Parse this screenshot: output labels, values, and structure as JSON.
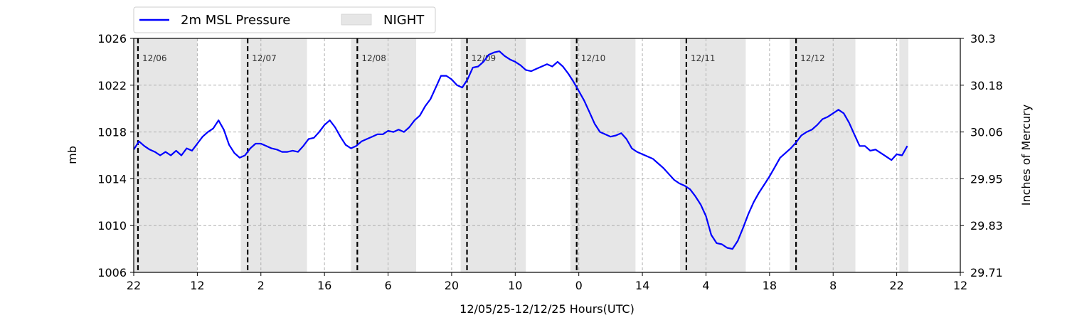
{
  "chart_data": {
    "type": "line",
    "xlabel": "12/05/25-12/12/25  Hours(UTC)",
    "ylabel": "mb",
    "y2label": "Inches of Mercury",
    "ylim": [
      1006,
      1026
    ],
    "yticks": [
      1006,
      1010,
      1014,
      1018,
      1022,
      1026
    ],
    "y2ticks": [
      "29.71",
      "29.83",
      "29.95",
      "30.06",
      "30.18",
      "30.3"
    ],
    "xlim_hours": [
      0,
      156
    ],
    "xticks": [
      {
        "h": 0,
        "label": "22"
      },
      {
        "h": 12,
        "label": "12"
      },
      {
        "h": 24,
        "label": "2"
      },
      {
        "h": 36,
        "label": "16"
      },
      {
        "h": 48,
        "label": "6"
      },
      {
        "h": 60,
        "label": "20"
      },
      {
        "h": 72,
        "label": "10"
      },
      {
        "h": 84,
        "label": "0"
      },
      {
        "h": 96,
        "label": "14"
      },
      {
        "h": 108,
        "label": "4"
      },
      {
        "h": 120,
        "label": "18"
      },
      {
        "h": 132,
        "label": "8"
      },
      {
        "h": 144,
        "label": "22"
      },
      {
        "h": 156,
        "label": "12"
      }
    ],
    "day_markers": [
      {
        "h": 0.8,
        "label": "12/06"
      },
      {
        "h": 21.5,
        "label": "12/07"
      },
      {
        "h": 42.2,
        "label": "12/08"
      },
      {
        "h": 62.9,
        "label": "12/09"
      },
      {
        "h": 83.6,
        "label": "12/10"
      },
      {
        "h": 104.3,
        "label": "12/11"
      },
      {
        "h": 125.0,
        "label": "12/12"
      }
    ],
    "night_bands": [
      [
        0,
        12
      ],
      [
        20.2,
        32.7
      ],
      [
        41,
        53.3
      ],
      [
        61.7,
        74
      ],
      [
        82.4,
        94.7
      ],
      [
        103.1,
        115.5
      ],
      [
        123.8,
        136.2
      ],
      [
        144.5,
        146.2
      ]
    ],
    "grid": true,
    "legend_position": "top-left",
    "legend": [
      {
        "label": "2m MSL Pressure",
        "color": "#0000ff",
        "kind": "line"
      },
      {
        "label": "NIGHT",
        "color": "#e6e6e6",
        "kind": "patch"
      }
    ],
    "series": [
      {
        "name": "2m MSL Pressure",
        "color": "#0000ff",
        "x": [
          0,
          1,
          2,
          3,
          4,
          5,
          6,
          7,
          8,
          9,
          10,
          11,
          12,
          13,
          14,
          15,
          16,
          17,
          18,
          19,
          20,
          21,
          22,
          23,
          24,
          25,
          26,
          27,
          28,
          29,
          30,
          31,
          32,
          33,
          34,
          35,
          36,
          37,
          38,
          39,
          40,
          41,
          42,
          43,
          44,
          45,
          46,
          47,
          48,
          49,
          50,
          51,
          52,
          53,
          54,
          55,
          56,
          57,
          58,
          59,
          60,
          61,
          62,
          63,
          64,
          65,
          66,
          67,
          68,
          69,
          70,
          71,
          72,
          73,
          74,
          75,
          76,
          77,
          78,
          79,
          80,
          81,
          82,
          83,
          84,
          85,
          86,
          87,
          88,
          89,
          90,
          91,
          92,
          93,
          94,
          95,
          96,
          97,
          98,
          99,
          100,
          101,
          102,
          103,
          104,
          105,
          106,
          107,
          108,
          109,
          110,
          111,
          112,
          113,
          114,
          115,
          116,
          117,
          118,
          119,
          120,
          121,
          122,
          123,
          124,
          125,
          126,
          127,
          128,
          129,
          130,
          131,
          132,
          133,
          134,
          135,
          136,
          137,
          138,
          139,
          140,
          141,
          142,
          143,
          144,
          145,
          146
        ],
        "y": [
          1016.5,
          1017.2,
          1016.8,
          1016.5,
          1016.3,
          1016.0,
          1016.3,
          1016.0,
          1016.4,
          1016.0,
          1016.6,
          1016.4,
          1017.0,
          1017.6,
          1018.0,
          1018.3,
          1019.0,
          1018.2,
          1016.9,
          1016.2,
          1015.8,
          1016.0,
          1016.6,
          1017.0,
          1017.0,
          1016.8,
          1016.6,
          1016.5,
          1016.3,
          1016.3,
          1016.4,
          1016.3,
          1016.8,
          1017.4,
          1017.5,
          1018.0,
          1018.6,
          1019.0,
          1018.4,
          1017.6,
          1016.9,
          1016.6,
          1016.8,
          1017.2,
          1017.4,
          1017.6,
          1017.8,
          1017.8,
          1018.1,
          1018.0,
          1018.2,
          1018.0,
          1018.4,
          1019.0,
          1019.4,
          1020.2,
          1020.8,
          1021.8,
          1022.8,
          1022.8,
          1022.5,
          1022.0,
          1021.8,
          1022.5,
          1023.5,
          1023.6,
          1024.0,
          1024.6,
          1024.8,
          1024.9,
          1024.5,
          1024.2,
          1024.0,
          1023.7,
          1023.3,
          1023.2,
          1023.4,
          1023.6,
          1023.8,
          1023.6,
          1024.0,
          1023.6,
          1023.0,
          1022.3,
          1021.5,
          1020.7,
          1019.7,
          1018.7,
          1018.0,
          1017.8,
          1017.6,
          1017.7,
          1017.9,
          1017.4,
          1016.6,
          1016.3,
          1016.1,
          1015.9,
          1015.7,
          1015.3,
          1014.9,
          1014.4,
          1013.9,
          1013.6,
          1013.4,
          1013.1,
          1012.5,
          1011.8,
          1010.8,
          1009.2,
          1008.5,
          1008.4,
          1008.1,
          1008.0,
          1008.7,
          1009.8,
          1011.0,
          1012.0,
          1012.8,
          1013.5,
          1014.2,
          1015.0,
          1015.8,
          1016.2,
          1016.6,
          1017.1,
          1017.7,
          1018.0,
          1018.2,
          1018.6,
          1019.1,
          1019.3,
          1019.6,
          1019.9,
          1019.6,
          1018.8,
          1017.8,
          1016.8,
          1016.8,
          1016.4,
          1016.5,
          1016.2,
          1015.9,
          1015.6,
          1016.1,
          1016.0,
          1016.8
        ]
      }
    ]
  }
}
